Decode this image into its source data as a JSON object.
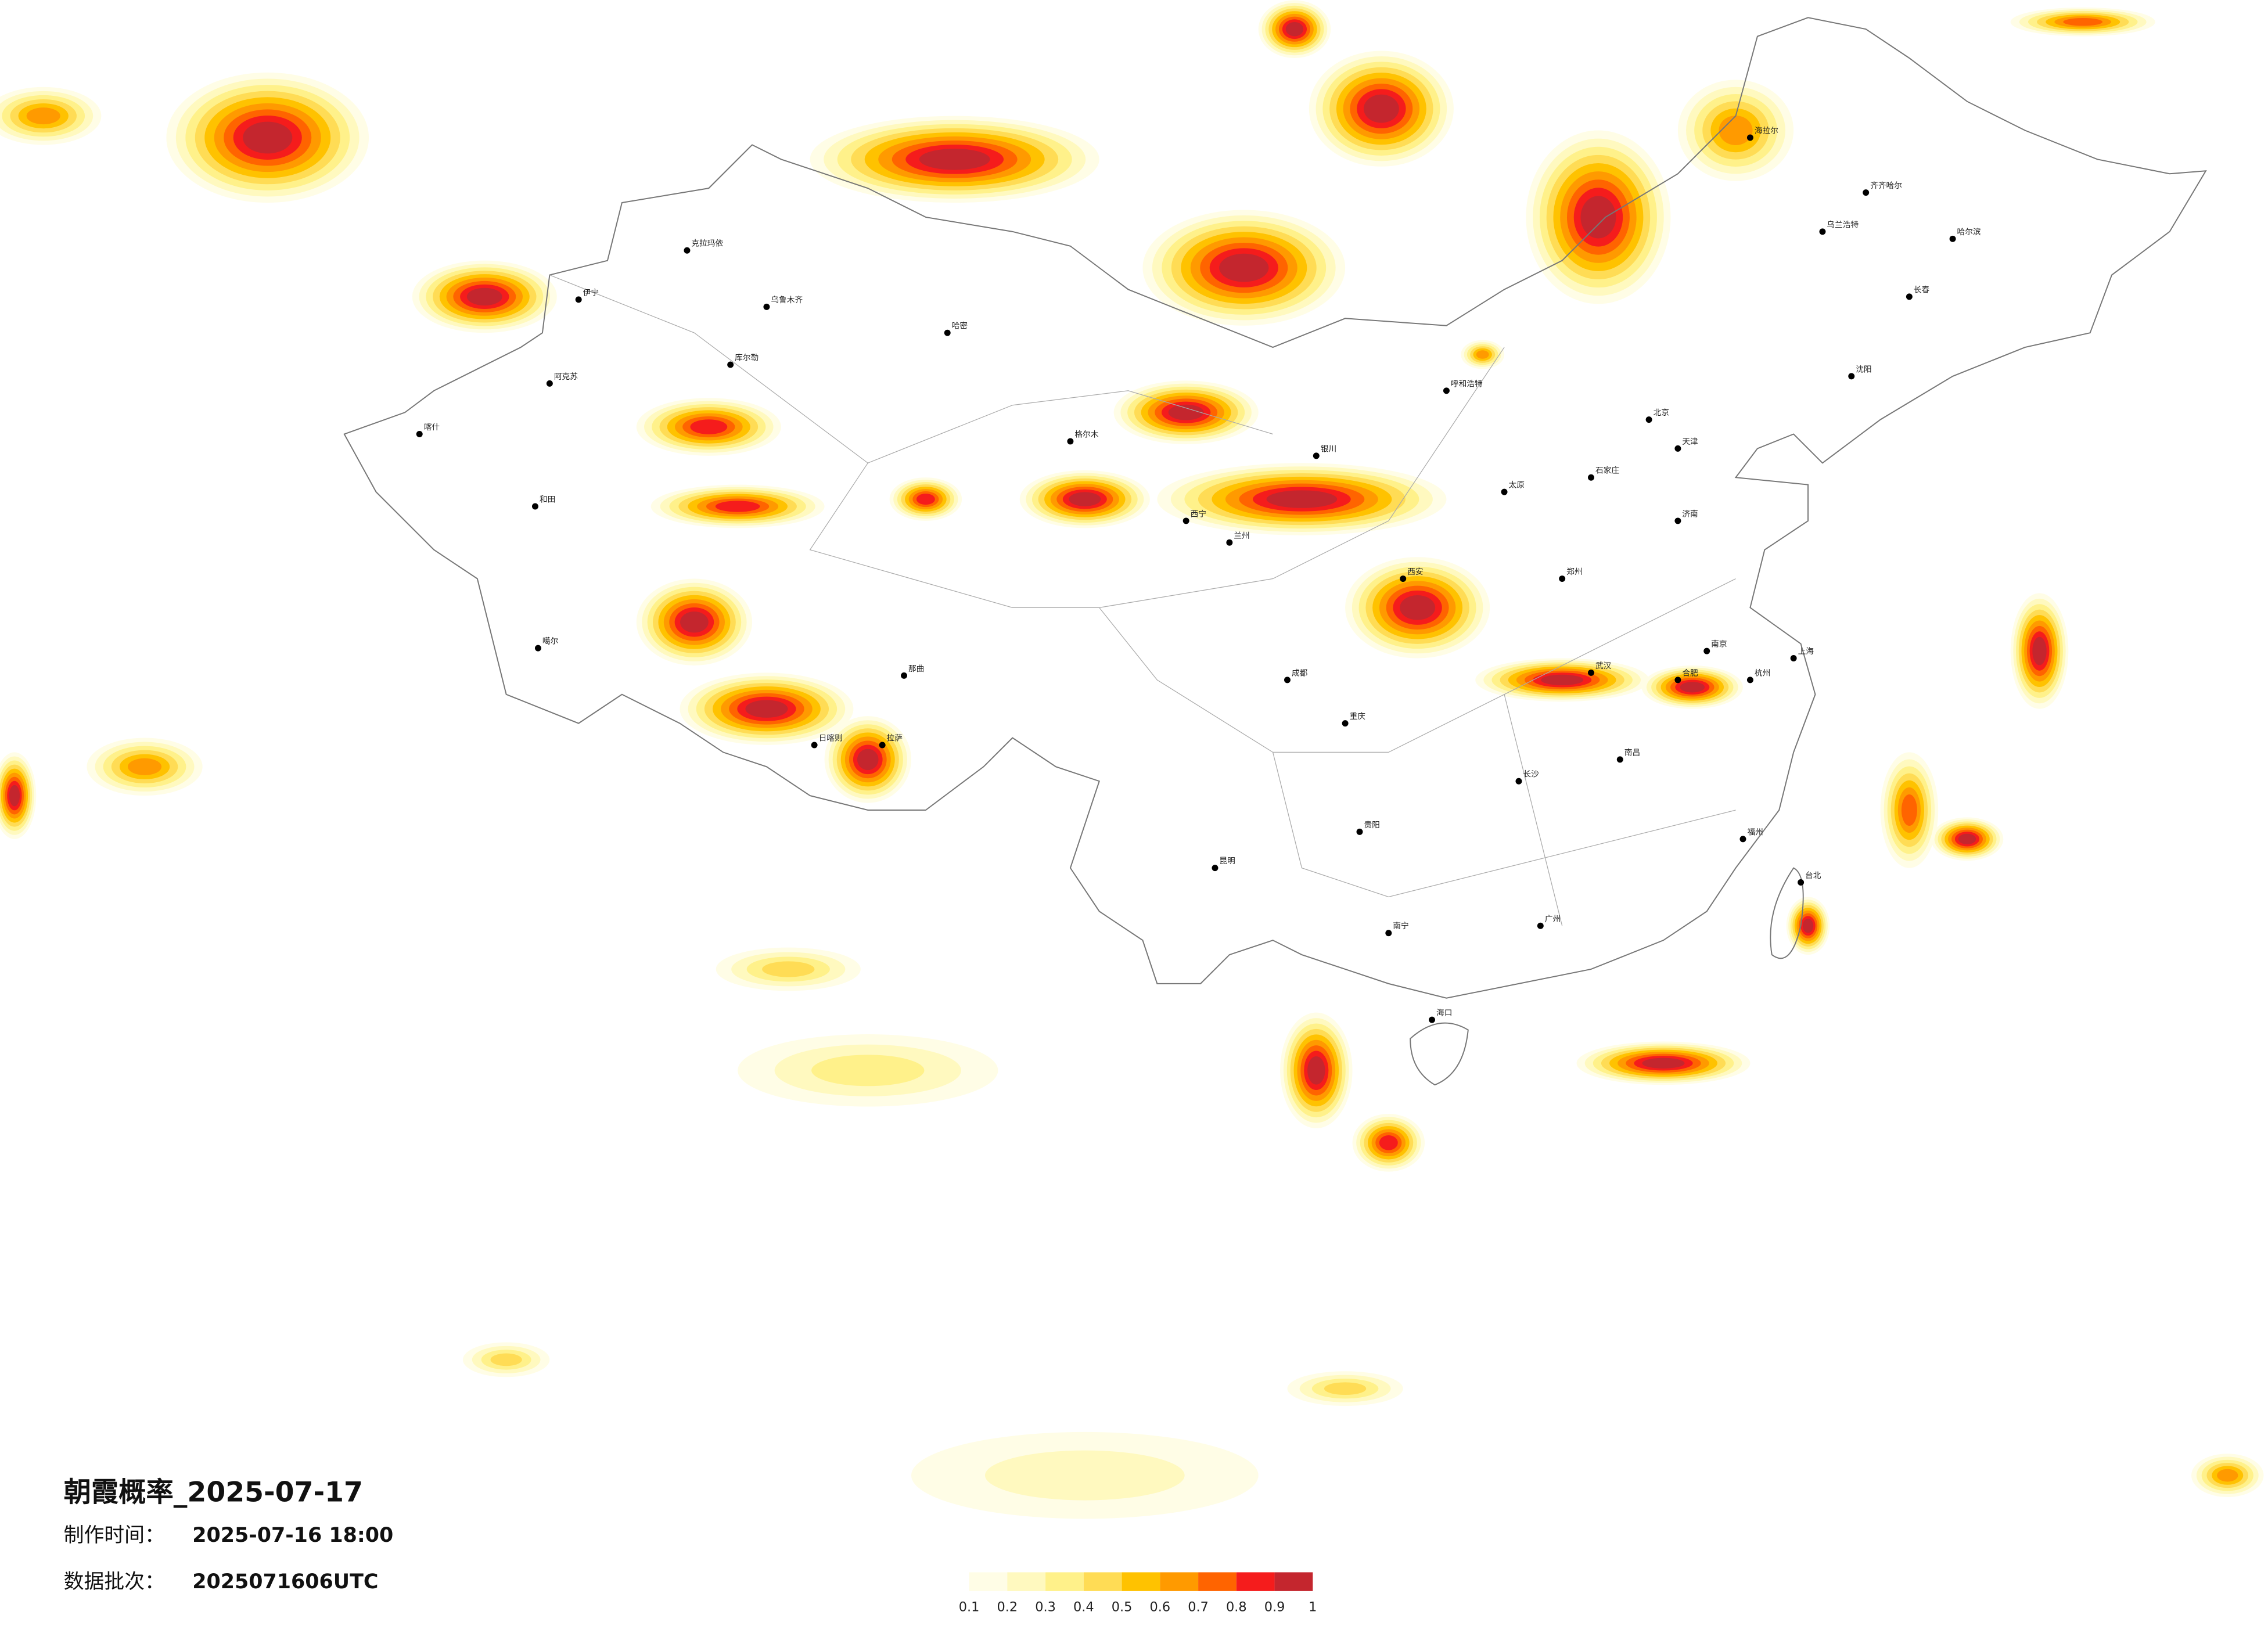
{
  "title": "朝霞概率_2025-07-17",
  "made_time": {
    "label": "制作时间：",
    "value": "2025-07-16 18:00"
  },
  "batch": {
    "label": "数据批次：",
    "value": "2025071606UTC"
  },
  "legend": {
    "ticks": [
      0.1,
      0.2,
      0.3,
      0.4,
      0.5,
      0.6,
      0.7,
      0.8,
      0.9,
      1
    ],
    "colors": [
      "#fffde6",
      "#fff9bf",
      "#fff18a",
      "#ffdc55",
      "#ffc200",
      "#ff9a00",
      "#ff6400",
      "#f51c1c",
      "#c4262e"
    ]
  },
  "cities": [
    {
      "name": "克拉玛依"
    },
    {
      "name": "乌鲁木齐"
    },
    {
      "name": "伊宁"
    },
    {
      "name": "阿克苏"
    },
    {
      "name": "喀什"
    },
    {
      "name": "和田"
    },
    {
      "name": "哈密"
    },
    {
      "name": "库尔勒"
    },
    {
      "name": "噶尔"
    },
    {
      "name": "日喀则"
    },
    {
      "name": "拉萨"
    },
    {
      "name": "那曲"
    },
    {
      "name": "格尔木"
    },
    {
      "name": "西宁"
    },
    {
      "name": "兰州"
    },
    {
      "name": "银川"
    },
    {
      "name": "呼和浩特"
    },
    {
      "name": "北京"
    },
    {
      "name": "天津"
    },
    {
      "name": "石家庄"
    },
    {
      "name": "太原"
    },
    {
      "name": "济南"
    },
    {
      "name": "郑州"
    },
    {
      "name": "西安"
    },
    {
      "name": "成都"
    },
    {
      "name": "重庆"
    },
    {
      "name": "昆明"
    },
    {
      "name": "贵阳"
    },
    {
      "name": "南宁"
    },
    {
      "name": "广州"
    },
    {
      "name": "长沙"
    },
    {
      "name": "武汉"
    },
    {
      "name": "南昌"
    },
    {
      "name": "杭州"
    },
    {
      "name": "上海"
    },
    {
      "name": "南京"
    },
    {
      "name": "合肥"
    },
    {
      "name": "福州"
    },
    {
      "name": "台北"
    },
    {
      "name": "沈阳"
    },
    {
      "name": "长春"
    },
    {
      "name": "哈尔滨"
    },
    {
      "name": "海口"
    },
    {
      "name": "齐齐哈尔"
    },
    {
      "name": "海拉尔"
    },
    {
      "name": "乌兰浩特"
    }
  ]
}
